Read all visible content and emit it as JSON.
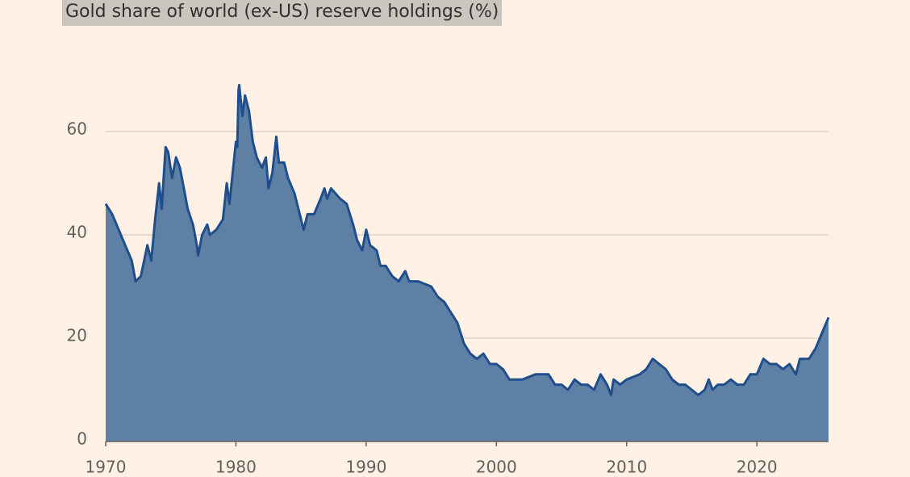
{
  "chart_data": {
    "type": "area",
    "title": "Gold share of world (ex-US) reserve holdings (%)",
    "x": [
      1970.0,
      1970.5,
      1971.0,
      1971.5,
      1972.0,
      1972.3,
      1972.7,
      1973.2,
      1973.5,
      1973.8,
      1974.1,
      1974.3,
      1974.6,
      1974.8,
      1975.1,
      1975.4,
      1975.7,
      1976.0,
      1976.3,
      1976.7,
      1977.0,
      1977.1,
      1977.4,
      1977.8,
      1978.0,
      1978.5,
      1979.0,
      1979.3,
      1979.5,
      1980.0,
      1980.1,
      1980.2,
      1980.25,
      1980.5,
      1980.7,
      1981.0,
      1981.3,
      1981.6,
      1982.0,
      1982.3,
      1982.5,
      1982.8,
      1983.1,
      1983.3,
      1983.7,
      1984.0,
      1984.5,
      1984.9,
      1985.2,
      1985.5,
      1986.0,
      1986.5,
      1986.8,
      1987.0,
      1987.3,
      1988.0,
      1988.5,
      1989.0,
      1989.3,
      1989.7,
      1990.0,
      1990.3,
      1990.8,
      1991.1,
      1991.5,
      1992.0,
      1992.5,
      1993.0,
      1993.3,
      1993.5,
      1994.0,
      1995.0,
      1995.5,
      1996.0,
      1996.5,
      1997.0,
      1997.5,
      1998.0,
      1998.5,
      1999.0,
      1999.5,
      2000.0,
      2000.5,
      2001.0,
      2002.0,
      2003.0,
      2004.0,
      2004.5,
      2005.0,
      2005.5,
      2006.0,
      2006.5,
      2007.0,
      2007.5,
      2008.0,
      2008.5,
      2008.8,
      2009.0,
      2009.5,
      2010.0,
      2011.0,
      2011.5,
      2012.0,
      2012.5,
      2013.0,
      2013.5,
      2014.0,
      2014.5,
      2015.0,
      2015.5,
      2016.0,
      2016.3,
      2016.6,
      2017.0,
      2017.5,
      2018.0,
      2018.5,
      2019.0,
      2019.5,
      2020.0,
      2020.5,
      2021.0,
      2021.5,
      2022.0,
      2022.5,
      2023.0,
      2023.3,
      2024.0,
      2024.5,
      2025.0,
      2025.5
    ],
    "values": [
      46,
      44,
      41,
      38,
      35,
      31,
      32,
      38,
      35,
      43,
      50,
      45,
      57,
      56,
      51,
      55,
      53,
      49,
      45,
      42,
      38,
      36,
      40,
      42,
      40,
      41,
      43,
      50,
      46,
      58,
      57,
      68,
      69,
      63,
      67,
      64,
      58,
      55,
      53,
      55,
      49,
      52,
      59,
      54,
      54,
      51,
      48,
      44,
      41,
      44,
      44,
      47,
      49,
      47,
      49,
      47,
      46,
      42,
      39,
      37,
      41,
      38,
      37,
      34,
      34,
      32,
      31,
      33,
      31,
      31,
      31,
      30,
      28,
      27,
      25,
      23,
      19,
      17,
      16,
      17,
      15,
      15,
      14,
      12,
      12,
      13,
      13,
      11,
      11,
      10,
      12,
      11,
      11,
      10,
      13,
      11,
      9,
      12,
      11,
      12,
      13,
      14,
      16,
      15,
      14,
      12,
      11,
      11,
      10,
      9,
      10,
      12,
      10,
      11,
      11,
      12,
      11,
      11,
      13,
      13,
      16,
      15,
      15,
      14,
      15,
      13,
      16,
      16,
      18,
      21,
      24
    ],
    "color": "#5f80a5",
    "line_color": "#1f4e8c",
    "xlim": [
      1970,
      2025.5
    ],
    "xticks": [
      1970,
      1980,
      1990,
      2000,
      2010,
      2020
    ],
    "ylim": [
      0,
      70
    ],
    "yticks": [
      0,
      20,
      40,
      60
    ],
    "grid": true
  }
}
